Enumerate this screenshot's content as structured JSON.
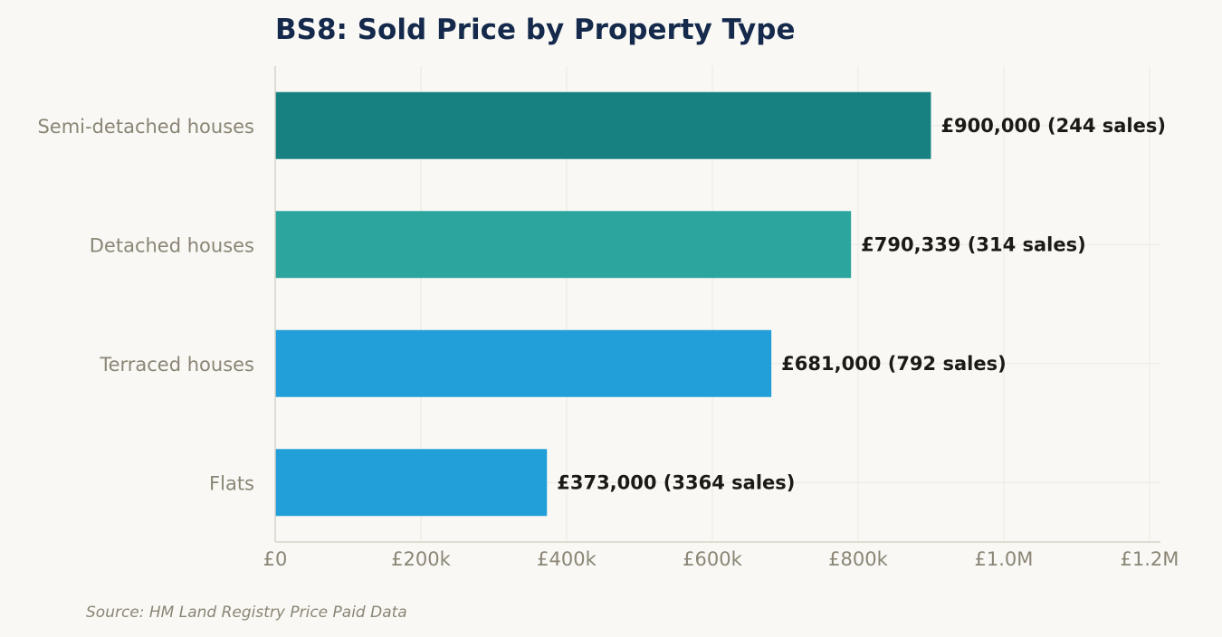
{
  "chart_data": {
    "type": "bar",
    "orientation": "horizontal",
    "title": "BS8: Sold Price by Property Type",
    "categories": [
      "Semi-detached houses",
      "Detached houses",
      "Terraced houses",
      "Flats"
    ],
    "values": [
      900000,
      790339,
      681000,
      373000
    ],
    "sales": [
      244,
      314,
      792,
      3364
    ],
    "data_labels": [
      "£900,000  (244 sales)",
      "£790,339  (314 sales)",
      "£681,000  (792 sales)",
      "£373,000  (3364 sales)"
    ],
    "bar_colors": [
      "#178080",
      "#2ba59d",
      "#229fd8",
      "#229fd8"
    ],
    "xlim": [
      0,
      1215000
    ],
    "x_ticks": [
      0,
      200000,
      400000,
      600000,
      800000,
      1000000,
      1200000
    ],
    "x_tick_labels": [
      "£0",
      "£200k",
      "£400k",
      "£600k",
      "£800k",
      "£1.0M",
      "£1.2M"
    ],
    "xlabel": "",
    "ylabel": "",
    "grid": true,
    "legend": "none"
  },
  "source": "Source: HM Land Registry Price Paid Data",
  "colors": {
    "background": "#f9f8f4",
    "title": "#14294b",
    "axis_text": "#8a8575",
    "label_text": "#1c1a16",
    "grid": "#ece9e1",
    "axis_line": "#d6d3c8"
  }
}
